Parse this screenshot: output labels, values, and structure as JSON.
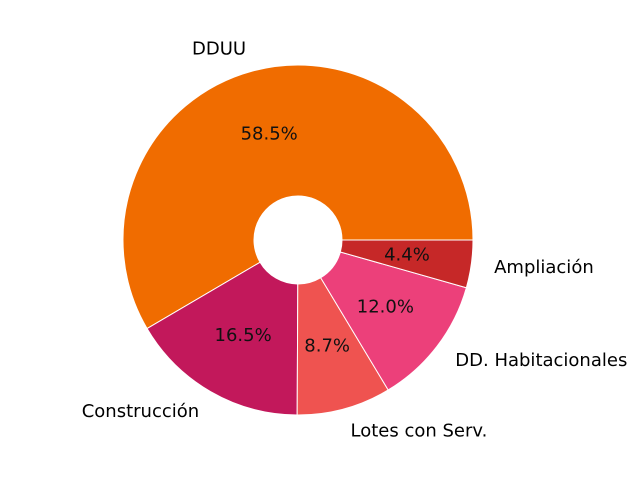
{
  "chart_data": {
    "type": "pie",
    "donut": true,
    "categories": [
      "DDUU",
      "Construcción",
      "Lotes con Serv.",
      "DD. Habitacionales",
      "Ampliación"
    ],
    "values": [
      58.5,
      16.5,
      8.7,
      12.0,
      4.4
    ],
    "value_labels": [
      "58.5%",
      "16.5%",
      "8.7%",
      "12.0%",
      "4.4%"
    ],
    "colors": [
      "#f06c00",
      "#c2185b",
      "#ef5350",
      "#ec407a",
      "#c62828"
    ],
    "start_angle_deg": 0,
    "direction": "counterclockwise",
    "title": ""
  }
}
